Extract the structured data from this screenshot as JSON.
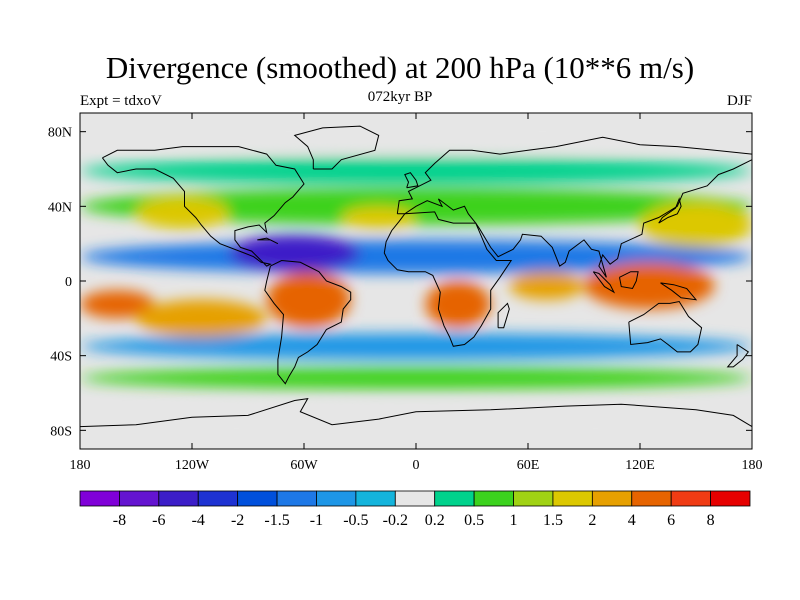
{
  "title": "Divergence (smoothed) at 200 hPa (10**6 m/s)",
  "subtitle": "072kyr BP",
  "left_label": "Expt = tdxoV",
  "right_label": "DJF",
  "chart_data": {
    "type": "heatmap",
    "title": "Divergence (smoothed) at 200 hPa (10**6 m/s)",
    "subtitle": "072kyr BP",
    "experiment": "Expt = tdxoV",
    "season": "DJF",
    "projection": "cylindrical equidistant",
    "xlim": [
      -180,
      180
    ],
    "ylim": [
      -90,
      90
    ],
    "x_ticks": [
      {
        "value": -180,
        "label": "180"
      },
      {
        "value": -120,
        "label": "120W"
      },
      {
        "value": -60,
        "label": "60W"
      },
      {
        "value": 0,
        "label": "0"
      },
      {
        "value": 60,
        "label": "60E"
      },
      {
        "value": 120,
        "label": "120E"
      },
      {
        "value": 180,
        "label": "180"
      }
    ],
    "y_ticks": [
      {
        "value": 80,
        "label": "80N"
      },
      {
        "value": 40,
        "label": "40N"
      },
      {
        "value": 0,
        "label": "0"
      },
      {
        "value": -40,
        "label": "40S"
      },
      {
        "value": -80,
        "label": "80S"
      }
    ],
    "colorbar": {
      "labels": [
        "-8",
        "-6",
        "-4",
        "-2",
        "-1.5",
        "-1",
        "-0.5",
        "-0.2",
        "0.2",
        "0.5",
        "1",
        "1.5",
        "2",
        "4",
        "6",
        "8"
      ],
      "colors": [
        "#8000d8",
        "#6414d0",
        "#3c1ec8",
        "#1e32d2",
        "#0050dc",
        "#1e78e6",
        "#1e96e6",
        "#14b4dc",
        "#e6e6e6",
        "#00d28c",
        "#3cd21e",
        "#a0d214",
        "#dcc800",
        "#e6a000",
        "#e66400",
        "#f03c14",
        "#e60000"
      ]
    },
    "regions": [
      {
        "name": "band-neg-north",
        "lon": [
          -180,
          180
        ],
        "lat": [
          4,
          22
        ],
        "value": -1.2
      },
      {
        "name": "band-neg-south",
        "lon": [
          -180,
          180
        ],
        "lat": [
          -42,
          -28
        ],
        "value": -1.0
      },
      {
        "name": "midlat-pos-north",
        "lon": [
          -180,
          180
        ],
        "lat": [
          30,
          50
        ],
        "value": 0.6
      },
      {
        "name": "north-pos-band",
        "lon": [
          -180,
          180
        ],
        "lat": [
          52,
          66
        ],
        "value": 0.4
      },
      {
        "name": "south-pos-band",
        "lon": [
          -180,
          180
        ],
        "lat": [
          -58,
          -46
        ],
        "value": 0.6
      },
      {
        "name": "north-pacific-pos",
        "lon": [
          120,
          180
        ],
        "lat": [
          18,
          42
        ],
        "value": 1.8
      },
      {
        "name": "central-pacific-pos",
        "lon": [
          -150,
          -100
        ],
        "lat": [
          28,
          45
        ],
        "value": 1.5
      },
      {
        "name": "north-atlantic-pos",
        "lon": [
          -40,
          0
        ],
        "lat": [
          28,
          40
        ],
        "value": 1.5
      },
      {
        "name": "caribbean-neg",
        "lon": [
          -100,
          -30
        ],
        "lat": [
          5,
          25
        ],
        "value": -5.0
      },
      {
        "name": "south-america-pos",
        "lon": [
          -80,
          -35
        ],
        "lat": [
          -25,
          5
        ],
        "value": 4.5
      },
      {
        "name": "africa-pos",
        "lon": [
          5,
          40
        ],
        "lat": [
          -25,
          0
        ],
        "value": 4.0
      },
      {
        "name": "indian-ocean-pos",
        "lon": [
          50,
          90
        ],
        "lat": [
          -10,
          5
        ],
        "value": 3.0
      },
      {
        "name": "maritime-continent-pos",
        "lon": [
          90,
          160
        ],
        "lat": [
          -15,
          10
        ],
        "value": 5.5
      },
      {
        "name": "west-pacific-pos",
        "lon": [
          -180,
          -140
        ],
        "lat": [
          -20,
          -5
        ],
        "value": 4.0
      },
      {
        "name": "south-pacific-pos",
        "lon": [
          -150,
          -80
        ],
        "lat": [
          -30,
          -10
        ],
        "value": 2.5
      },
      {
        "name": "antarctica-neutral",
        "lon": [
          -180,
          180
        ],
        "lat": [
          -90,
          -68
        ],
        "value": 0.0
      },
      {
        "name": "arctic-neutral",
        "lon": [
          -180,
          180
        ],
        "lat": [
          70,
          90
        ],
        "value": 0.0
      }
    ]
  }
}
